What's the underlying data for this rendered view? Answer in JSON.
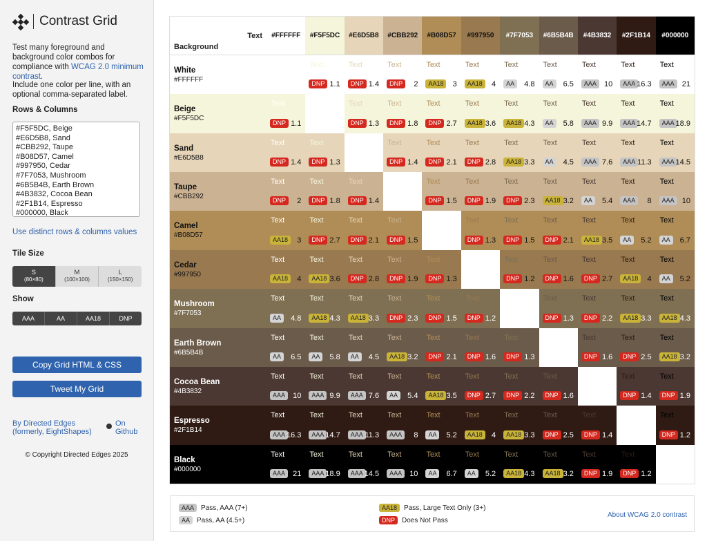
{
  "sidebar": {
    "title": "Contrast Grid",
    "intro": "Test many foreground and background color combos for compliance with",
    "intro_link": "WCAG 2.0 minimum contrast",
    "intro_end": ".",
    "instruction": "Include one color per line, with an optional comma-separated label.",
    "rows_columns_label": "Rows & Columns",
    "color_lines": [
      "#F5F5DC, Beige",
      "#E6D5B8, Sand",
      "#CBB292, Taupe",
      "#B08D57, Camel",
      "#997950, Cedar",
      "#7F7053, Mushroom",
      "#6B5B4B, Earth Brown",
      "#4B3832, Cocoa Bean",
      "#2F1B14, Espresso",
      "#000000, Black"
    ],
    "distinct_link": "Use distinct rows & columns values",
    "tile_size_label": "Tile Size",
    "tile_sizes": [
      {
        "name": "S",
        "size": "(80×80)"
      },
      {
        "name": "M",
        "size": "(100×100)"
      },
      {
        "name": "L",
        "size": "(150×150)"
      }
    ],
    "show_label": "Show",
    "show_options": [
      "AAA",
      "AA",
      "AA18",
      "DNP"
    ],
    "copy_button": "Copy Grid HTML & CSS",
    "tweet_button": "Tweet My Grid",
    "by_link": "By Directed Edges (formerly, EightShapes)",
    "github_link": "On Github",
    "copyright": "© Copyright Directed Edges 2025"
  },
  "grid": {
    "corner_text": "Text",
    "corner_background": "Background",
    "sample_text": "Text",
    "colors": [
      {
        "name": "White",
        "hex": "#FFFFFF"
      },
      {
        "name": "Beige",
        "hex": "#F5F5DC"
      },
      {
        "name": "Sand",
        "hex": "#E6D5B8"
      },
      {
        "name": "Taupe",
        "hex": "#CBB292"
      },
      {
        "name": "Camel",
        "hex": "#B08D57"
      },
      {
        "name": "Cedar",
        "hex": "#997950"
      },
      {
        "name": "Mushroom",
        "hex": "#7F7053"
      },
      {
        "name": "Earth Brown",
        "hex": "#6B5B4B"
      },
      {
        "name": "Cocoa Bean",
        "hex": "#4B3832"
      },
      {
        "name": "Espresso",
        "hex": "#2F1B14"
      },
      {
        "name": "Black",
        "hex": "#000000"
      }
    ],
    "ratios": [
      [
        null,
        1.1,
        1.4,
        2,
        3,
        4,
        4.8,
        6.5,
        10,
        16.3,
        21
      ],
      [
        1.1,
        null,
        1.3,
        1.8,
        2.7,
        3.6,
        4.3,
        5.8,
        9.9,
        14.7,
        18.9
      ],
      [
        1.4,
        1.3,
        null,
        1.4,
        2.1,
        2.8,
        3.3,
        4.5,
        7.6,
        11.3,
        14.5
      ],
      [
        2,
        1.8,
        1.4,
        null,
        1.5,
        1.9,
        2.3,
        3.2,
        5.4,
        8,
        10
      ],
      [
        3,
        2.7,
        2.1,
        1.5,
        null,
        1.3,
        1.5,
        2.1,
        3.5,
        5.2,
        6.7
      ],
      [
        4,
        3.6,
        2.8,
        1.9,
        1.3,
        null,
        1.2,
        1.6,
        2.7,
        4,
        5.2
      ],
      [
        4.8,
        4.3,
        3.3,
        2.3,
        1.5,
        1.2,
        null,
        1.3,
        2.2,
        3.3,
        4.3
      ],
      [
        6.5,
        5.8,
        4.5,
        3.2,
        2.1,
        1.6,
        1.3,
        null,
        1.6,
        2.5,
        3.2
      ],
      [
        10,
        9.9,
        7.6,
        5.4,
        3.5,
        2.7,
        2.2,
        1.6,
        null,
        1.4,
        1.9
      ],
      [
        16.3,
        14.7,
        11.3,
        8,
        5.2,
        4,
        3.3,
        2.5,
        1.4,
        null,
        1.2
      ],
      [
        21,
        18.9,
        14.5,
        10,
        6.7,
        5.2,
        4.3,
        3.2,
        1.9,
        1.2,
        null
      ]
    ],
    "badges": [
      [
        null,
        "DNP",
        "DNP",
        "DNP",
        "AA18",
        "AA18",
        "AA",
        "AA",
        "AAA",
        "AAA",
        "AAA"
      ],
      [
        "DNP",
        null,
        "DNP",
        "DNP",
        "DNP",
        "AA18",
        "AA18",
        "AA",
        "AAA",
        "AAA",
        "AAA"
      ],
      [
        "DNP",
        "DNP",
        null,
        "DNP",
        "DNP",
        "DNP",
        "AA18",
        "AA",
        "AAA",
        "AAA",
        "AAA"
      ],
      [
        "DNP",
        "DNP",
        "DNP",
        null,
        "DNP",
        "DNP",
        "DNP",
        "AA18",
        "AA",
        "AAA",
        "AAA"
      ],
      [
        "AA18",
        "DNP",
        "DNP",
        "DNP",
        null,
        "DNP",
        "DNP",
        "DNP",
        "AA18",
        "AA",
        "AA"
      ],
      [
        "AA18",
        "AA18",
        "DNP",
        "DNP",
        "DNP",
        null,
        "DNP",
        "DNP",
        "DNP",
        "AA18",
        "AA"
      ],
      [
        "AA",
        "AA18",
        "AA18",
        "DNP",
        "DNP",
        "DNP",
        null,
        "DNP",
        "DNP",
        "AA18",
        "AA18"
      ],
      [
        "AA",
        "AA",
        "AA",
        "AA18",
        "DNP",
        "DNP",
        "DNP",
        null,
        "DNP",
        "DNP",
        "AA18"
      ],
      [
        "AAA",
        "AAA",
        "AAA",
        "AA",
        "AA18",
        "DNP",
        "DNP",
        "DNP",
        null,
        "DNP",
        "DNP"
      ],
      [
        "AAA",
        "AAA",
        "AAA",
        "AAA",
        "AA",
        "AA18",
        "AA18",
        "DNP",
        "DNP",
        null,
        "DNP"
      ],
      [
        "AAA",
        "AAA",
        "AAA",
        "AAA",
        "AA",
        "AA",
        "AA18",
        "AA18",
        "DNP",
        "DNP",
        null
      ]
    ]
  },
  "legend": {
    "items": [
      {
        "badge": "AAA",
        "label": "Pass, AAA (7+)"
      },
      {
        "badge": "AA",
        "label": "Pass, AA (4.5+)"
      },
      {
        "badge": "AA18",
        "label": "Pass, Large Text Only (3+)"
      },
      {
        "badge": "DNP",
        "label": "Does Not Pass"
      }
    ],
    "link": "About WCAG 2.0 contrast"
  }
}
